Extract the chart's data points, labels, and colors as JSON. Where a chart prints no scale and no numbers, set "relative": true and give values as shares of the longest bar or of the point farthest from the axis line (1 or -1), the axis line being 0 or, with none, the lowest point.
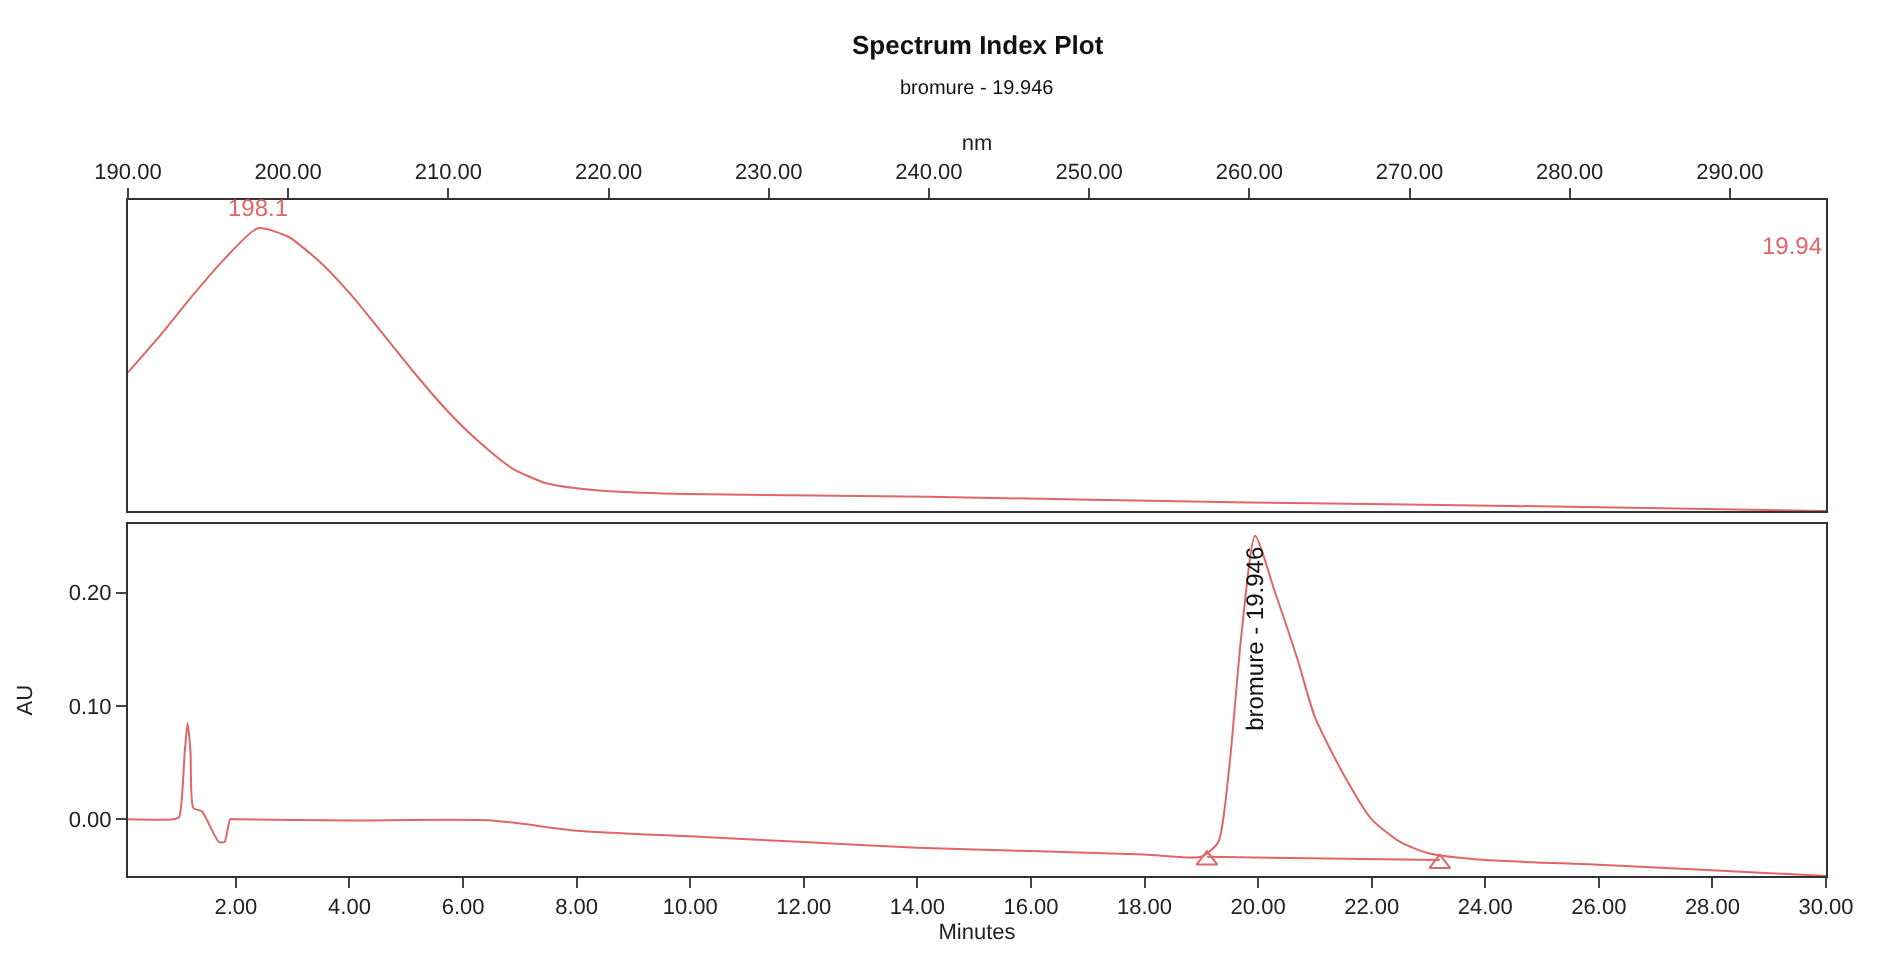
{
  "chart_data": [
    {
      "type": "line",
      "title": "Spectrum Index Plot",
      "subtitle": "bromure - 19.946",
      "xlabel": "nm",
      "relative": true,
      "tick_labels": "x",
      "marker": "none",
      "xlim": [
        190,
        296
      ],
      "xticks": [
        {
          "value": 190,
          "label": "190.00"
        },
        {
          "value": 200,
          "label": "200.00"
        },
        {
          "value": 210,
          "label": "210.00"
        },
        {
          "value": 220,
          "label": "220.00"
        },
        {
          "value": 230,
          "label": "230.00"
        },
        {
          "value": 240,
          "label": "240.00"
        },
        {
          "value": 250,
          "label": "250.00"
        },
        {
          "value": 260,
          "label": "260.00"
        },
        {
          "value": 270,
          "label": "270.00"
        },
        {
          "value": 280,
          "label": "280.00"
        },
        {
          "value": 290,
          "label": "290.00"
        }
      ],
      "series": [
        {
          "color": "#e06666",
          "x": [
            190,
            192,
            194,
            196,
            198.1,
            200,
            202,
            204,
            206,
            208,
            210,
            212,
            214,
            216,
            218,
            220,
            225,
            240,
            260,
            280,
            296
          ],
          "values": [
            0.49,
            0.62,
            0.76,
            0.89,
            1.0,
            0.97,
            0.88,
            0.76,
            0.62,
            0.48,
            0.35,
            0.24,
            0.15,
            0.1,
            0.08,
            0.07,
            0.06,
            0.05,
            0.03,
            0.015,
            0
          ]
        }
      ],
      "annotations": [
        {
          "text": "198.1",
          "x": 198.1,
          "y": 1.0
        },
        "19.94"
      ]
    },
    {
      "type": "line",
      "xlabel": "Minutes",
      "ylabel": "AU",
      "xlim": [
        0.1,
        30
      ],
      "xticks": [
        {
          "value": 2,
          "label": "2.00"
        },
        {
          "value": 4,
          "label": "4.00"
        },
        {
          "value": 6,
          "label": "6.00"
        },
        {
          "value": 8,
          "label": "8.00"
        },
        {
          "value": 10,
          "label": "10.00"
        },
        {
          "value": 12,
          "label": "12.00"
        },
        {
          "value": 14,
          "label": "14.00"
        },
        {
          "value": 16,
          "label": "16.00"
        },
        {
          "value": 18,
          "label": "18.00"
        },
        {
          "value": 20,
          "label": "20.00"
        },
        {
          "value": 22,
          "label": "22.00"
        },
        {
          "value": 24,
          "label": "24.00"
        },
        {
          "value": 26,
          "label": "26.00"
        },
        {
          "value": 28,
          "label": "28.00"
        },
        {
          "value": 30,
          "label": "30.00"
        }
      ],
      "ylim": [
        -0.05,
        0.26
      ],
      "yticks": [
        {
          "value": 0,
          "label": "0.00"
        },
        {
          "value": 0.1,
          "label": "0.10"
        },
        {
          "value": 0.2,
          "label": "0.20"
        }
      ],
      "series": [
        {
          "type": "line",
          "marker": "none",
          "color": "#e06666",
          "x": [
            0.1,
            0.9,
            1.0,
            1.1,
            1.15,
            1.2,
            1.25,
            1.4,
            1.7,
            1.8,
            1.9,
            2.0,
            4,
            6.5,
            8,
            10,
            12,
            14,
            16,
            18,
            19,
            19.3,
            19.5,
            19.7,
            19.946,
            20.3,
            20.7,
            21,
            21.5,
            22,
            22.5,
            23,
            24,
            26,
            28,
            30
          ],
          "values": [
            0,
            0,
            0.002,
            0.06,
            0.085,
            0.06,
            0.01,
            0.007,
            -0.02,
            -0.02,
            0,
            0,
            -0.001,
            -0.001,
            -0.01,
            -0.015,
            -0.02,
            -0.025,
            -0.028,
            -0.031,
            -0.033,
            -0.02,
            0.05,
            0.16,
            0.25,
            0.2,
            0.14,
            0.09,
            0.04,
            0,
            -0.02,
            -0.03,
            -0.036,
            -0.04,
            -0.045,
            -0.05
          ]
        },
        {
          "type": "line",
          "marker": "none",
          "color": "#e06666",
          "x": [
            19.1,
            23.2
          ],
          "values": [
            -0.033,
            -0.036
          ]
        },
        {
          "type": "scatter",
          "marker": "triangle",
          "color": "#e06666",
          "x": [
            19.1,
            23.2
          ],
          "values": [
            -0.036,
            -0.039
          ]
        }
      ],
      "annotations": [
        {
          "text": "bromure - 19.946",
          "x": 19.946,
          "y": 0.25
        }
      ]
    }
  ]
}
